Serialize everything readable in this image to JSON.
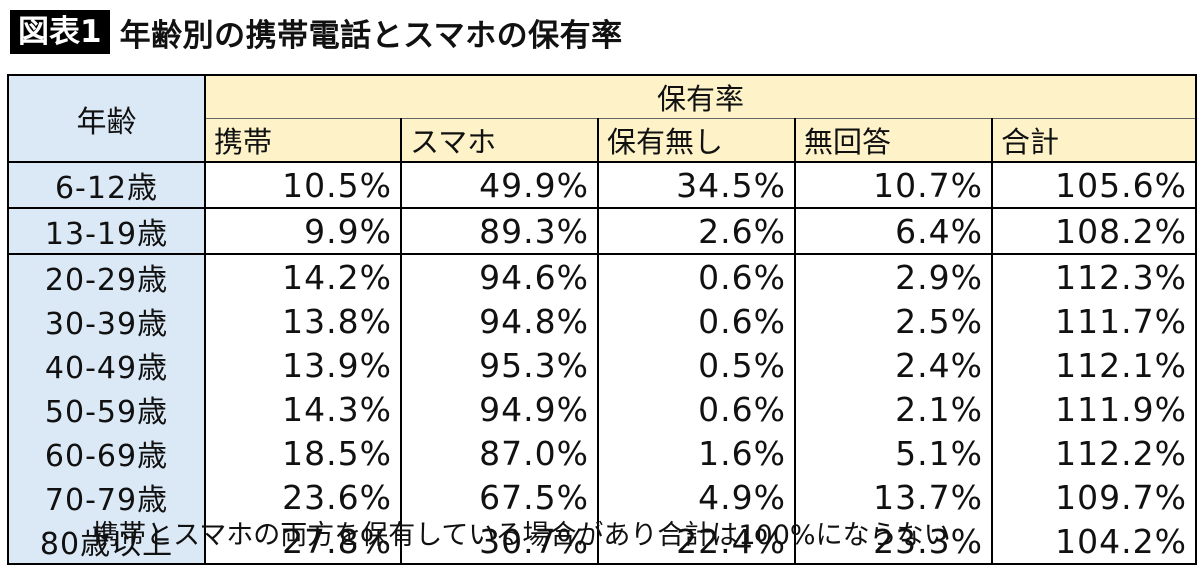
{
  "fig_label": "図表1",
  "title": "年齢別の携帯電話とスマホの保有率",
  "note": "携帯とスマホの両方を保有している場合があり合計は100%にならない",
  "chart_data": {
    "type": "table",
    "title": "年齢別の携帯電話とスマホの保有率",
    "row_header": "年齢",
    "group_header": "保有率",
    "columns": [
      "携帯",
      "スマホ",
      "保有無し",
      "無回答",
      "合計"
    ],
    "rows": [
      {
        "age": "6-12歳",
        "values": [
          "10.5%",
          "49.9%",
          "34.5%",
          "10.7%",
          "105.6%"
        ]
      },
      {
        "age": "13-19歳",
        "values": [
          "9.9%",
          "89.3%",
          "2.6%",
          "6.4%",
          "108.2%"
        ]
      },
      {
        "age": "20-29歳",
        "values": [
          "14.2%",
          "94.6%",
          "0.6%",
          "2.9%",
          "112.3%"
        ]
      },
      {
        "age": "30-39歳",
        "values": [
          "13.8%",
          "94.8%",
          "0.6%",
          "2.5%",
          "111.7%"
        ]
      },
      {
        "age": "40-49歳",
        "values": [
          "13.9%",
          "95.3%",
          "0.5%",
          "2.4%",
          "112.1%"
        ]
      },
      {
        "age": "50-59歳",
        "values": [
          "14.3%",
          "94.9%",
          "0.6%",
          "2.1%",
          "111.9%"
        ]
      },
      {
        "age": "60-69歳",
        "values": [
          "18.5%",
          "87.0%",
          "1.6%",
          "5.1%",
          "112.2%"
        ]
      },
      {
        "age": "70-79歳",
        "values": [
          "23.6%",
          "67.5%",
          "4.9%",
          "13.7%",
          "109.7%"
        ]
      },
      {
        "age": "80歳以上",
        "values": [
          "27.8%",
          "30.7%",
          "22.4%",
          "23.3%",
          "104.2%"
        ]
      }
    ],
    "colors": {
      "age_fill": "#dbe8f5",
      "header_fill": "#fdf2c8"
    }
  }
}
